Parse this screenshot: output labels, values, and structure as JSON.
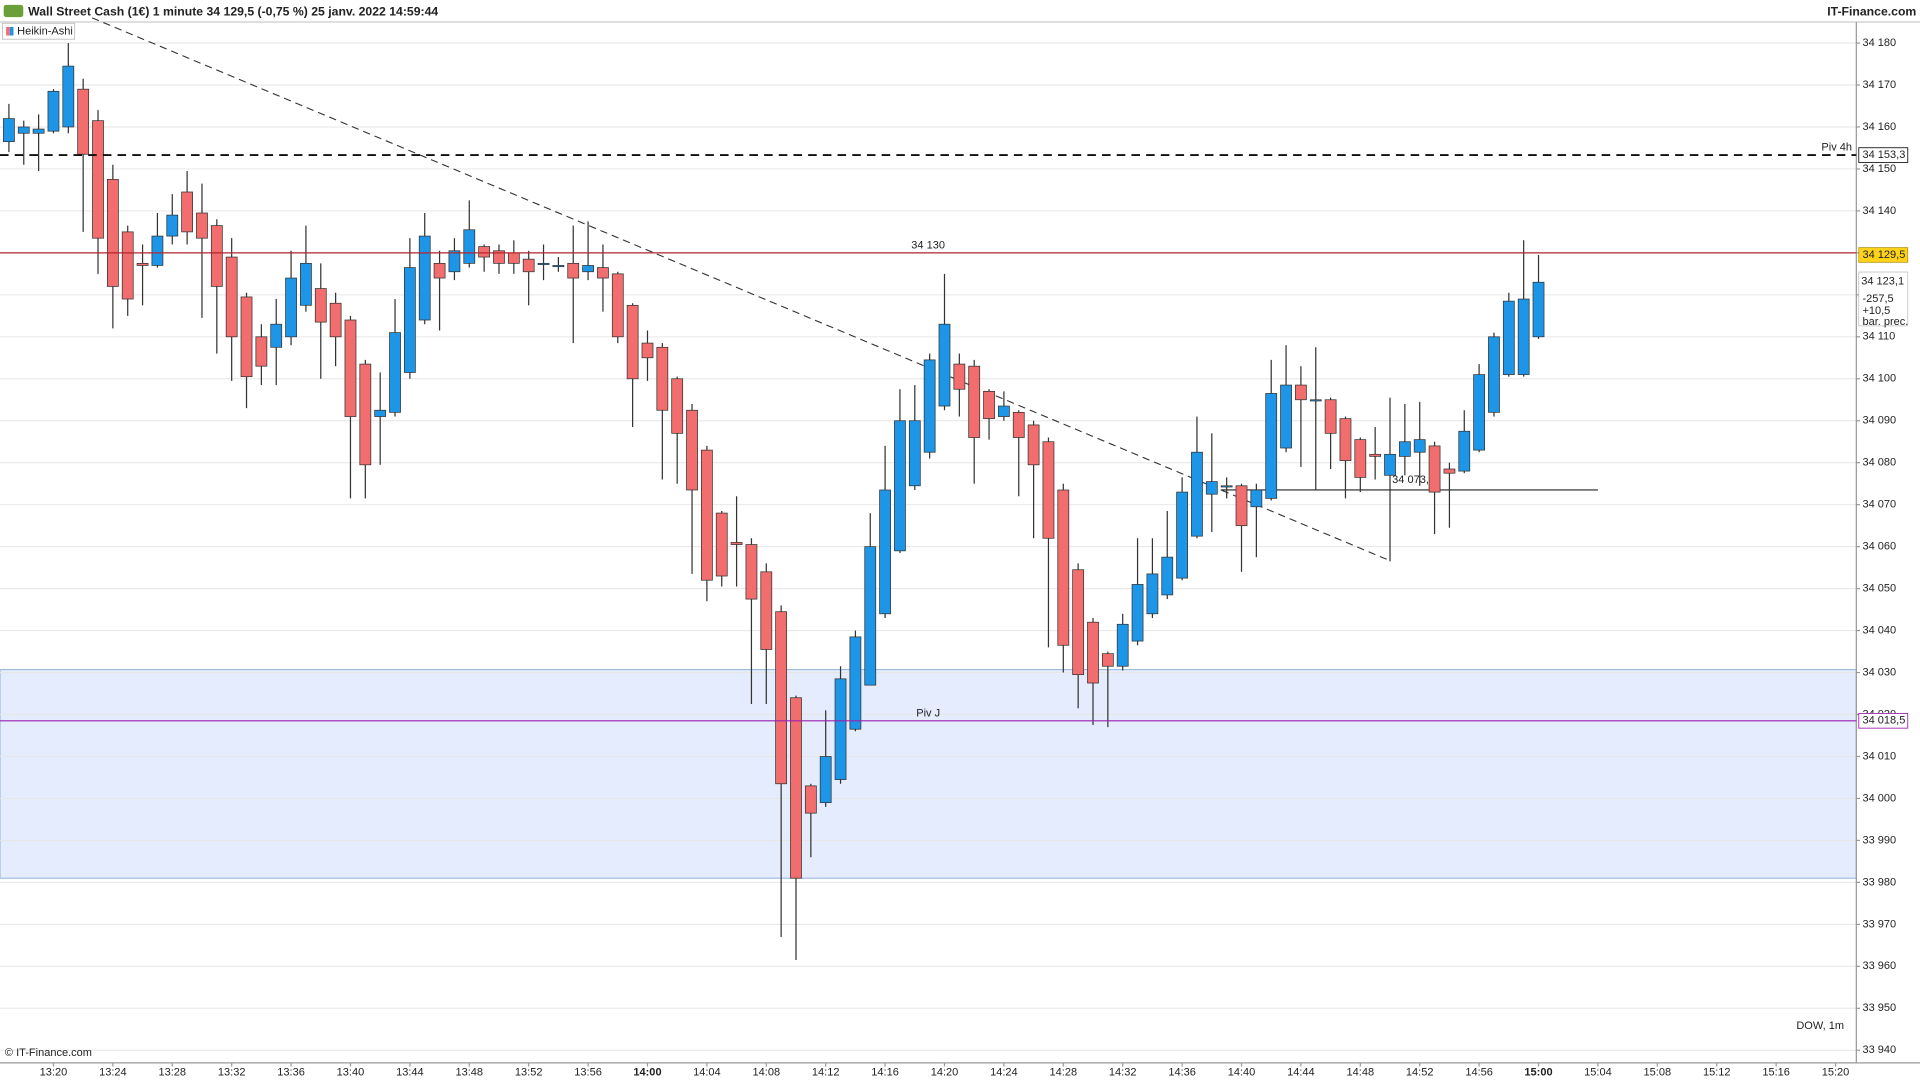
{
  "chart_data": {
    "type": "candlestick",
    "title": "Wall Street Cash (1€) 1 minute 34 129,5 (-0,75 %) 25 janv. 2022 14:59:44",
    "source": "IT-Finance.com",
    "copyright": "© IT-Finance.com",
    "watermark": "DOW, 1m",
    "x": [
      797,
      798,
      799,
      800,
      801,
      802,
      803,
      804,
      805,
      806,
      807,
      808,
      809,
      810,
      811,
      812,
      813,
      814,
      815,
      816,
      817,
      818,
      819,
      820,
      821,
      822,
      823,
      824,
      825,
      826,
      827,
      828,
      829,
      830,
      831,
      832,
      833,
      834,
      835,
      836,
      837,
      838,
      839,
      840,
      841,
      842,
      843,
      844,
      845,
      846,
      847,
      848,
      849,
      850,
      851,
      852,
      853,
      854,
      855,
      856,
      857,
      858,
      859,
      860,
      861,
      862,
      863,
      864,
      865,
      866,
      867,
      868,
      869,
      870,
      871,
      872,
      873,
      874,
      875,
      876,
      877,
      878,
      879,
      880,
      881,
      882,
      883,
      884,
      885,
      886,
      887,
      888,
      889,
      890,
      891,
      892,
      893,
      894,
      895,
      896,
      897,
      898,
      899,
      900
    ],
    "series": [
      {
        "name": "Heikin-Ashi",
        "up_color": "#1e96e8",
        "down_color": "#f26d6d",
        "open": [
          34156.5,
          34158.5,
          34158.5,
          34159,
          34160,
          34169,
          34161.5,
          34147.5,
          34135,
          34127.5,
          34127,
          34134,
          34144.5,
          34139.5,
          34136.5,
          34129,
          34119.5,
          34110,
          34107.5,
          34110,
          34117.5,
          34121.5,
          34118,
          34114,
          34103.5,
          34091,
          34092,
          34101.5,
          34114,
          34127.5,
          34125.5,
          34127.5,
          34131.5,
          34130.5,
          34130,
          34128.5,
          34127.5,
          34127,
          34127.5,
          34125.5,
          34126.5,
          34125,
          34117.5,
          34108.5,
          34107.5,
          34100,
          34092.5,
          34083,
          34068,
          34061,
          34060.5,
          34054,
          34044.5,
          34024,
          34003,
          33999,
          34004.5,
          34016.5,
          34027,
          34044,
          34059,
          34074.5,
          34082.5,
          34093.5,
          34103.5,
          34103,
          34097,
          34091,
          34092,
          34089,
          34085,
          34073.5,
          34054.5,
          34042,
          34034.5,
          34031.5,
          34037.5,
          34044,
          34048.5,
          34052.5,
          34062.5,
          34072.5,
          34074.5,
          34074.5,
          34069.5,
          34071.5,
          34083.5,
          34098.5,
          34095,
          34095,
          34090.5,
          34085.5,
          34082,
          34077,
          34081.5,
          34082.5,
          34084,
          34078.5,
          34078,
          34083,
          34092,
          34101,
          34101,
          34110
        ],
        "high": [
          34165.5,
          34161.5,
          34163,
          34169,
          34180,
          34171.5,
          34164,
          34151,
          34136.5,
          34132,
          34139.5,
          34144,
          34149.5,
          34146.5,
          34138,
          34133.5,
          34120.5,
          34113,
          34119,
          34130.5,
          34136.5,
          34127.5,
          34120.5,
          34115,
          34104.5,
          34101.5,
          34119,
          34133.5,
          34139.5,
          34130.5,
          34133.5,
          34142.5,
          34132,
          34132,
          34133,
          34130.5,
          34132,
          34129,
          34136.5,
          34137.5,
          34132,
          34125.5,
          34118,
          34111.5,
          34108.5,
          34100.5,
          34094,
          34084,
          34068.5,
          34072,
          34062,
          34056,
          34046,
          34024.5,
          34003.5,
          34021,
          34031.5,
          34040,
          34068,
          34084,
          34097.5,
          34098.5,
          34106,
          34125,
          34106,
          34104.5,
          34097.5,
          34097,
          34092.5,
          34090,
          34086,
          34075,
          34056,
          34043,
          34035,
          34044,
          34062,
          34062,
          34068.5,
          34076.5,
          34091,
          34087,
          34076.5,
          34075,
          34075,
          34104.5,
          34108,
          34103,
          34107.5,
          34095.5,
          34091,
          34086,
          34088.5,
          34095.5,
          34094,
          34094.5,
          34085,
          34080,
          34092.5,
          34103.5,
          34111,
          34120.5,
          34133,
          34129.5
        ],
        "low": [
          34154,
          34151,
          34149.5,
          34158.5,
          34158.5,
          34135,
          34125,
          34112,
          34115,
          34117.5,
          34126.5,
          34132,
          34132,
          34114.5,
          34106,
          34099.5,
          34093,
          34098.5,
          34098.5,
          34108,
          34116,
          34100,
          34103,
          34071.5,
          34071.5,
          34079.5,
          34091,
          34100,
          34113,
          34111.5,
          34123.5,
          34126.5,
          34125.5,
          34125,
          34125,
          34117.5,
          34123.5,
          34125.5,
          34108.5,
          34123.5,
          34116,
          34108.5,
          34088.5,
          34099.5,
          34076,
          34075,
          34053.5,
          34047,
          34050.5,
          34050.5,
          34022.5,
          34022.5,
          33967,
          33961.5,
          33986,
          33998,
          34003.5,
          34016,
          34027,
          34043,
          34058.5,
          34073.5,
          34081,
          34092.5,
          34091,
          34075,
          34085.5,
          34090,
          34072,
          34062,
          34036,
          34030,
          34021.5,
          34017.5,
          34017,
          34030.5,
          34036.5,
          34043,
          34047.5,
          34052,
          34062,
          34063.5,
          34071.5,
          34054,
          34057.5,
          34071,
          34082.5,
          34079,
          34073.5,
          34078.5,
          34071.5,
          34073,
          34076,
          34056.5,
          34077,
          34074.5,
          34063,
          34064.5,
          34077.5,
          34082.5,
          34091,
          34100.5,
          34100.5,
          34109.5
        ],
        "close": [
          34162,
          34160,
          34159.5,
          34168.5,
          34174.5,
          34153.5,
          34133.5,
          34122,
          34119,
          34127,
          34134,
          34139,
          34135,
          34133.5,
          34122,
          34110,
          34100.5,
          34103,
          34113,
          34124,
          34127.5,
          34113.5,
          34110,
          34091,
          34079.5,
          34092.5,
          34111,
          34126.5,
          34134,
          34124,
          34130.5,
          34135.5,
          34129,
          34127.5,
          34127.5,
          34125.5,
          34127.5,
          34127,
          34124,
          34127,
          34124,
          34110,
          34100,
          34105,
          34092.5,
          34087,
          34073.5,
          34052,
          34053,
          34060.5,
          34047.5,
          34035.5,
          34003.5,
          33981,
          33996.5,
          34010,
          34028.5,
          34038.5,
          34060,
          34073.5,
          34090,
          34090,
          34104.5,
          34113,
          34097.5,
          34086,
          34090.5,
          34093.5,
          34086,
          34079.5,
          34062,
          34036.5,
          34029.5,
          34027.5,
          34031.5,
          34041.5,
          34051,
          34053.5,
          34057.5,
          34073,
          34082.5,
          34075.5,
          34074.5,
          34065,
          34073.5,
          34096.5,
          34098.5,
          34095,
          34095,
          34087,
          34080.5,
          34076.5,
          34081.5,
          34082,
          34085,
          34085.5,
          34073,
          34077.5,
          34087.5,
          34101,
          34110,
          34118.5,
          34119,
          34123
        ]
      }
    ],
    "xlim": [
      796.4,
      921.4
    ],
    "xticks": [
      {
        "value": 800,
        "label": "13:20"
      },
      {
        "value": 804,
        "label": "13:24"
      },
      {
        "value": 808,
        "label": "13:28"
      },
      {
        "value": 812,
        "label": "13:32"
      },
      {
        "value": 816,
        "label": "13:36"
      },
      {
        "value": 820,
        "label": "13:40"
      },
      {
        "value": 824,
        "label": "13:44"
      },
      {
        "value": 828,
        "label": "13:48"
      },
      {
        "value": 832,
        "label": "13:52"
      },
      {
        "value": 836,
        "label": "13:56"
      },
      {
        "value": 840,
        "label": "14:00",
        "bold": true
      },
      {
        "value": 844,
        "label": "14:04"
      },
      {
        "value": 848,
        "label": "14:08"
      },
      {
        "value": 852,
        "label": "14:12"
      },
      {
        "value": 856,
        "label": "14:16"
      },
      {
        "value": 860,
        "label": "14:20"
      },
      {
        "value": 864,
        "label": "14:24"
      },
      {
        "value": 868,
        "label": "14:28"
      },
      {
        "value": 872,
        "label": "14:32"
      },
      {
        "value": 876,
        "label": "14:36"
      },
      {
        "value": 880,
        "label": "14:40"
      },
      {
        "value": 884,
        "label": "14:44"
      },
      {
        "value": 888,
        "label": "14:48"
      },
      {
        "value": 892,
        "label": "14:52"
      },
      {
        "value": 896,
        "label": "14:56"
      },
      {
        "value": 900,
        "label": "15:00",
        "bold": true
      },
      {
        "value": 904,
        "label": "15:04"
      },
      {
        "value": 908,
        "label": "15:08"
      },
      {
        "value": 912,
        "label": "15:12"
      },
      {
        "value": 916,
        "label": "15:16"
      },
      {
        "value": 920,
        "label": "15:20"
      }
    ],
    "ylim": [
      33937,
      34185
    ],
    "yticks": [
      {
        "value": 33940,
        "label": "33 940"
      },
      {
        "value": 33950,
        "label": "33 950"
      },
      {
        "value": 33960,
        "label": "33 960"
      },
      {
        "value": 33970,
        "label": "33 970"
      },
      {
        "value": 33980,
        "label": "33 980"
      },
      {
        "value": 33990,
        "label": "33 990"
      },
      {
        "value": 34000,
        "label": "34 000"
      },
      {
        "value": 34010,
        "label": "34 010"
      },
      {
        "value": 34020,
        "label": "34 020"
      },
      {
        "value": 34030,
        "label": "34 030"
      },
      {
        "value": 34040,
        "label": "34 040"
      },
      {
        "value": 34050,
        "label": "34 050"
      },
      {
        "value": 34060,
        "label": "34 060"
      },
      {
        "value": 34070,
        "label": "34 070"
      },
      {
        "value": 34080,
        "label": "34 080"
      },
      {
        "value": 34090,
        "label": "34 090"
      },
      {
        "value": 34100,
        "label": "34 100"
      },
      {
        "value": 34110,
        "label": "34 110"
      },
      {
        "value": 34120,
        "label": "34 120"
      },
      {
        "value": 34130,
        "label": "34 130"
      },
      {
        "value": 34140,
        "label": "34 140"
      },
      {
        "value": 34150,
        "label": "34 150"
      },
      {
        "value": 34160,
        "label": "34 160"
      },
      {
        "value": 34170,
        "label": "34 170"
      },
      {
        "value": 34180,
        "label": "34 180"
      }
    ],
    "grid": true,
    "zone": {
      "from": 33981,
      "to": 34030.7,
      "color": "#e4ecfd",
      "border": "#8fb0d8"
    },
    "levels": [
      {
        "value": 34153.3,
        "label": "Piv 4h",
        "badge": "34 153,3",
        "color": "#111111",
        "dashed": true,
        "label_position": "right"
      },
      {
        "value": 34130,
        "label": "34 130",
        "color": "#b3262f",
        "dashed": false,
        "label_position": "center"
      },
      {
        "value": 34018.5,
        "label": "Piv J",
        "badge": "34 018,5",
        "color": "#9c1fb0",
        "dashed": false,
        "label_position": "center"
      }
    ],
    "support": {
      "value": 34073.5,
      "label": "34 073,5",
      "x_from": 878.6,
      "x_to": 904
    },
    "trendline": {
      "x": [
        802.6,
        889.9
      ],
      "y": [
        34186,
        34056.8
      ]
    },
    "price_badges": [
      {
        "value": 34129.5,
        "label": "34 129,5",
        "color": "#ffd21a"
      },
      {
        "value": 34123.1,
        "label": "34 123,1",
        "color": "#ffffff"
      }
    ],
    "info": [
      {
        "label": "-257,5",
        "color": "#c62828"
      },
      {
        "label": "+10,5",
        "color": "#2e7d32"
      },
      {
        "label": "bar. prec.",
        "color": "#2e7d32"
      }
    ]
  }
}
